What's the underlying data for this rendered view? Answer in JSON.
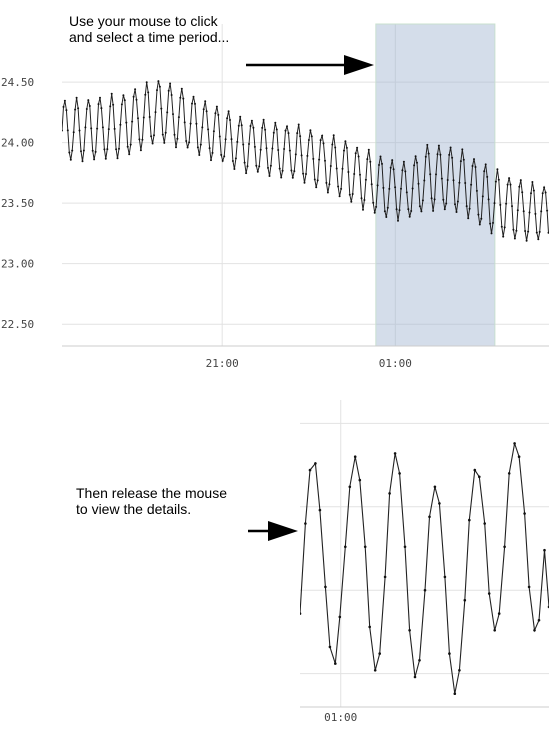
{
  "annotations": {
    "top_lines": [
      "Use your mouse to click",
      "and select a time period..."
    ],
    "bottom_lines": [
      "Then release the mouse",
      "to view the details."
    ]
  },
  "colors": {
    "line": "#222222",
    "marker": "#111111",
    "grid": "#e2e2e2",
    "selection_fill": "#9fb4d0",
    "selection_border": "#c8e0cf",
    "tick_text": "#444444",
    "arrow": "#000000"
  },
  "chart_data": [
    {
      "type": "line",
      "title": "",
      "xlabel": "",
      "ylabel": "",
      "grid": true,
      "ylim": [
        22.32,
        24.98
      ],
      "xlim": [
        17.3,
        28.55
      ],
      "y_ticks": [
        22.5,
        23.0,
        23.5,
        24.0,
        24.5
      ],
      "y_tick_labels": [
        "22.50",
        "23.00",
        "23.50",
        "24.00",
        "24.50"
      ],
      "x_ticks": [
        21.0,
        25.0
      ],
      "x_tick_labels": [
        "21:00",
        "01:00"
      ],
      "selection": {
        "from": 24.55,
        "to": 27.3
      },
      "series": [
        {
          "period_hours": 0.27,
          "samples_per_period": 8,
          "anchors": [
            {
              "x": 17.5,
              "mid": 24.1,
              "amp": 0.25
            },
            {
              "x": 18.6,
              "mid": 24.13,
              "amp": 0.26
            },
            {
              "x": 19.6,
              "mid": 24.27,
              "amp": 0.26
            },
            {
              "x": 20.3,
              "mid": 24.16,
              "amp": 0.23
            },
            {
              "x": 21.5,
              "mid": 23.98,
              "amp": 0.22
            },
            {
              "x": 22.7,
              "mid": 23.92,
              "amp": 0.22
            },
            {
              "x": 23.8,
              "mid": 23.78,
              "amp": 0.24
            },
            {
              "x": 24.7,
              "mid": 23.63,
              "amp": 0.25
            },
            {
              "x": 25.3,
              "mid": 23.6,
              "amp": 0.23
            },
            {
              "x": 25.8,
              "mid": 23.73,
              "amp": 0.27
            },
            {
              "x": 26.6,
              "mid": 23.67,
              "amp": 0.26
            },
            {
              "x": 27.2,
              "mid": 23.52,
              "amp": 0.27
            },
            {
              "x": 28.0,
              "mid": 23.43,
              "amp": 0.24
            },
            {
              "x": 28.6,
              "mid": 23.42,
              "amp": 0.22
            }
          ]
        }
      ]
    },
    {
      "type": "line",
      "title": "",
      "xlabel": "",
      "ylabel": "",
      "grid": true,
      "ylim": [
        23.15,
        24.07
      ],
      "xlim": [
        24.55,
        27.3
      ],
      "y_ticks": [
        23.25,
        23.5,
        23.75,
        24.0
      ],
      "y_tick_labels": [],
      "x_ticks": [
        25.0
      ],
      "x_tick_labels": [
        "01:00"
      ],
      "series": [
        {
          "points": [
            [
              24.55,
              23.43
            ],
            [
              24.61,
              23.7
            ],
            [
              24.66,
              23.86
            ],
            [
              24.72,
              23.88
            ],
            [
              24.77,
              23.74
            ],
            [
              24.83,
              23.51
            ],
            [
              24.88,
              23.33
            ],
            [
              24.94,
              23.28
            ],
            [
              24.99,
              23.42
            ],
            [
              25.05,
              23.63
            ],
            [
              25.1,
              23.81
            ],
            [
              25.16,
              23.9
            ],
            [
              25.21,
              23.83
            ],
            [
              25.27,
              23.63
            ],
            [
              25.32,
              23.39
            ],
            [
              25.38,
              23.26
            ],
            [
              25.43,
              23.31
            ],
            [
              25.49,
              23.54
            ],
            [
              25.54,
              23.79
            ],
            [
              25.6,
              23.91
            ],
            [
              25.65,
              23.85
            ],
            [
              25.71,
              23.63
            ],
            [
              25.76,
              23.38
            ],
            [
              25.82,
              23.24
            ],
            [
              25.87,
              23.29
            ],
            [
              25.93,
              23.5
            ],
            [
              25.98,
              23.72
            ],
            [
              26.04,
              23.81
            ],
            [
              26.09,
              23.76
            ],
            [
              26.15,
              23.54
            ],
            [
              26.2,
              23.31
            ],
            [
              26.26,
              23.19
            ],
            [
              26.31,
              23.26
            ],
            [
              26.37,
              23.47
            ],
            [
              26.42,
              23.71
            ],
            [
              26.48,
              23.86
            ],
            [
              26.53,
              23.84
            ],
            [
              26.59,
              23.7
            ],
            [
              26.64,
              23.49
            ],
            [
              26.7,
              23.38
            ],
            [
              26.75,
              23.43
            ],
            [
              26.81,
              23.63
            ],
            [
              26.86,
              23.85
            ],
            [
              26.92,
              23.94
            ],
            [
              26.97,
              23.9
            ],
            [
              27.03,
              23.73
            ],
            [
              27.08,
              23.51
            ],
            [
              27.14,
              23.38
            ],
            [
              27.19,
              23.41
            ],
            [
              27.25,
              23.62
            ],
            [
              27.3,
              23.45
            ]
          ]
        }
      ]
    }
  ]
}
